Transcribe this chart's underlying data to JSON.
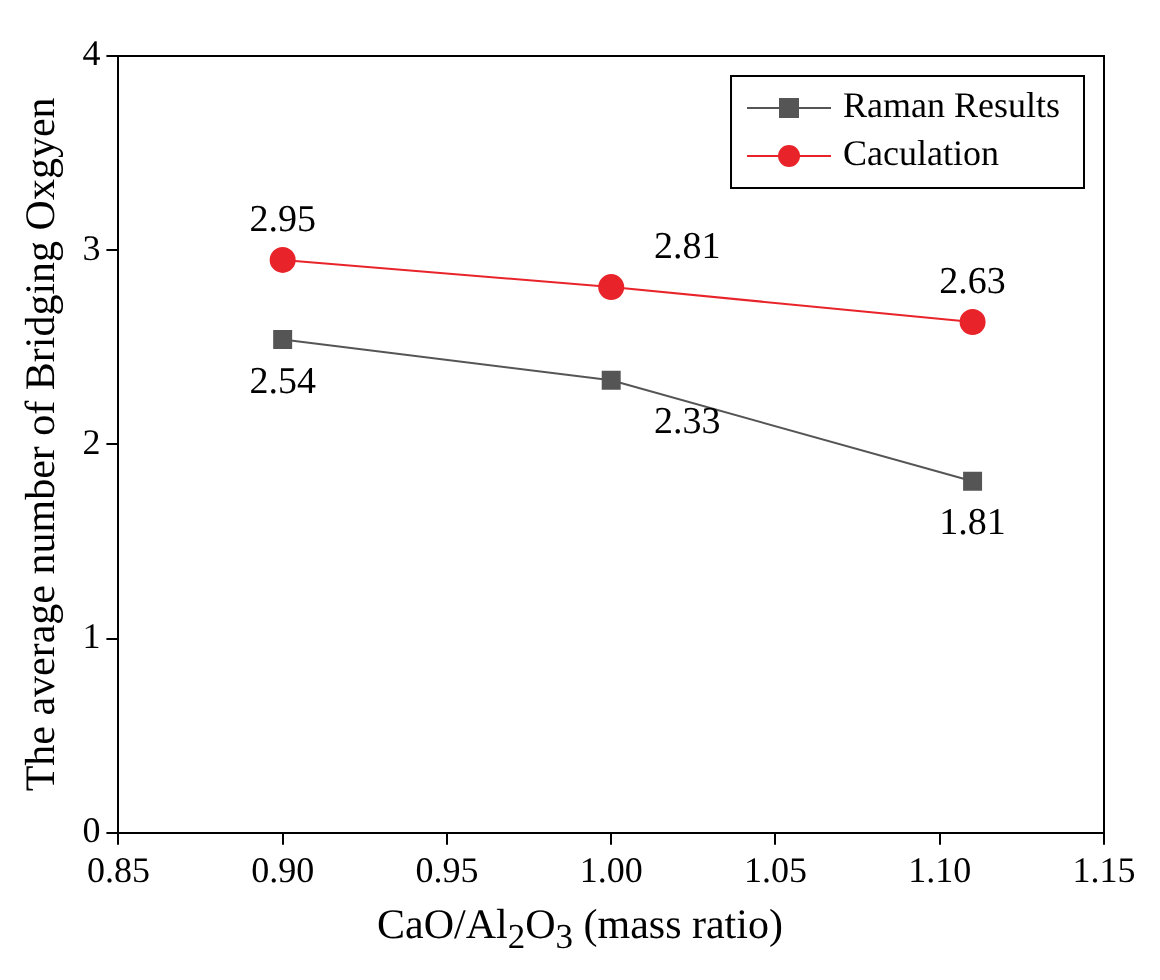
{
  "chart_data": {
    "type": "line",
    "xlabel": "CaO/Al$_{2}$O$_{3}$ (mass ratio)",
    "ylabel": "The average number of Bridging Oxgyen",
    "x": [
      0.9,
      1.0,
      1.11
    ],
    "series": [
      {
        "name": "Raman Results",
        "color": "#555555",
        "marker": "square",
        "values": [
          2.54,
          2.33,
          1.81
        ]
      },
      {
        "name": "Caculation",
        "color": "#e8242a",
        "marker": "circle",
        "values": [
          2.95,
          2.81,
          2.63
        ]
      }
    ],
    "xlim": [
      0.85,
      1.15
    ],
    "xticks": [
      0.85,
      {
        "value": 0.9,
        "label": "0.90"
      },
      0.95,
      {
        "value": 1,
        "label": "1.00"
      },
      1.05,
      {
        "value": 1.1,
        "label": "1.10"
      },
      1.15
    ],
    "ylim": [
      0,
      4
    ],
    "yticks": [
      0,
      1,
      2,
      3,
      4
    ],
    "grid": false,
    "legend": "top right",
    "data_labels": true,
    "line_style": "solid"
  }
}
